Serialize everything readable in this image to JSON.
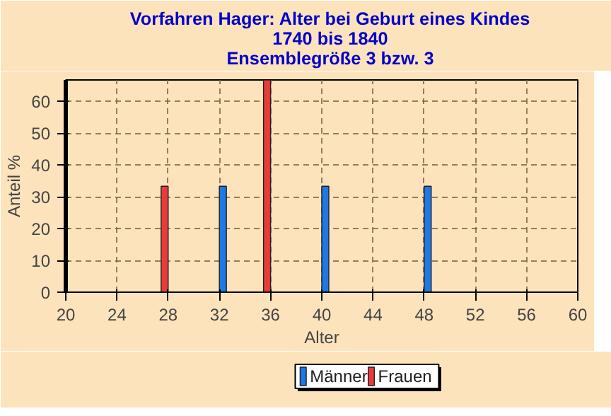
{
  "chart_data": {
    "type": "bar",
    "title": "Vorfahren Hager: Alter bei Geburt eines Kindes",
    "subtitle": "1740 bis 1840\nEnsemblegröße 3 bzw. 3",
    "xlabel": "Alter",
    "ylabel": "Anteil %",
    "series": [
      {
        "name": "Männer",
        "color": "#1e78e6",
        "x": [
          32,
          40,
          48
        ],
        "values": [
          33.3,
          33.3,
          33.3
        ]
      },
      {
        "name": "Frauen",
        "color": "#e83c3c",
        "x": [
          28,
          36
        ],
        "values": [
          33.3,
          66.7
        ]
      }
    ],
    "xlim": [
      20,
      60
    ],
    "xticks": [
      20,
      24,
      28,
      32,
      36,
      40,
      44,
      48,
      52,
      56,
      60
    ],
    "ylim": [
      0,
      66.7
    ],
    "yticks": [
      0,
      10,
      20,
      30,
      40,
      50,
      60
    ],
    "grid": true,
    "legend": "bottom"
  }
}
